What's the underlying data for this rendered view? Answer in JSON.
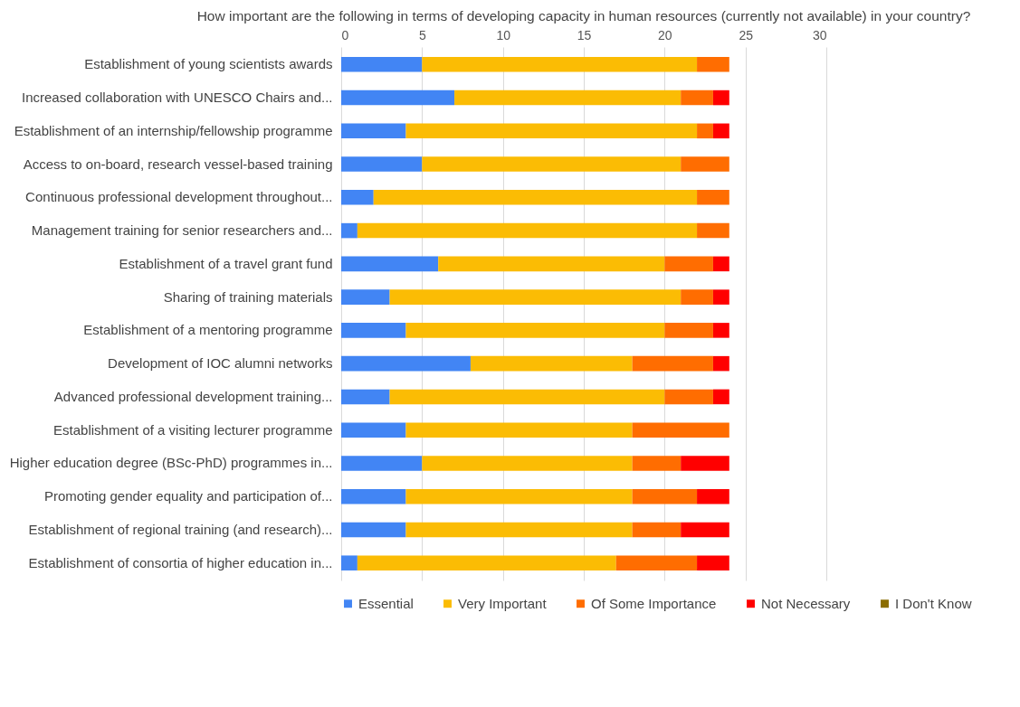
{
  "chart_data": {
    "type": "bar",
    "orientation": "horizontal",
    "stacked": true,
    "title": "How important  are the following in terms of developing  capacity in human\nresources (currently not available)  in your country?",
    "categories": [
      "Establishment of young scientists awards",
      "Increased collaboration with UNESCO Chairs and...",
      "Establishment of an internship/fellowship programme",
      "Access to on-board, research vessel-based training",
      "Continuous professional development throughout...",
      "Management training for senior researchers and...",
      "Establishment of a travel grant fund",
      "Sharing of training materials",
      "Establishment of a mentoring programme",
      "Development of IOC alumni networks",
      "Advanced professional development training...",
      "Establishment of a visiting lecturer programme",
      "Higher education degree (BSc-PhD) programmes in...",
      "Promoting gender equality and participation of...",
      "Establishment of regional training (and research)...",
      "Establishment of consortia of higher education in..."
    ],
    "series": [
      {
        "name": "Essential",
        "color": "#4285f4",
        "values": [
          5,
          7,
          4,
          5,
          2,
          1,
          6,
          3,
          4,
          8,
          3,
          4,
          5,
          4,
          4,
          1
        ]
      },
      {
        "name": "Very Important",
        "color": "#fbbc04",
        "values": [
          17,
          14,
          18,
          16,
          20,
          21,
          14,
          18,
          16,
          10,
          17,
          14,
          13,
          14,
          14,
          16
        ]
      },
      {
        "name": "Of Some Importance",
        "color": "#ff6d01",
        "values": [
          2,
          2,
          1,
          3,
          2,
          2,
          3,
          2,
          3,
          5,
          3,
          6,
          3,
          4,
          3,
          5
        ]
      },
      {
        "name": "Not Necessary",
        "color": "#ff0000",
        "values": [
          0,
          1,
          1,
          0,
          0,
          0,
          1,
          1,
          1,
          1,
          1,
          0,
          3,
          2,
          3,
          2
        ]
      },
      {
        "name": "I Don't Know",
        "color": "#8b6d00",
        "values": [
          0,
          0,
          0,
          0,
          0,
          0,
          0,
          0,
          0,
          0,
          0,
          0,
          0,
          0,
          0,
          0
        ]
      }
    ],
    "xlim": [
      0,
      30
    ],
    "xticks": [
      0,
      5,
      10,
      15,
      20,
      25,
      30
    ],
    "grid": "x",
    "legend": "bottom"
  }
}
